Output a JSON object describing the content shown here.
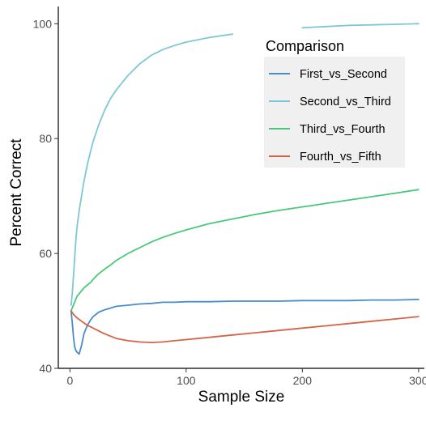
{
  "chart_data": {
    "type": "line",
    "title": "",
    "xlabel": "Sample Size",
    "ylabel": "Percent Correct",
    "xlim": [
      -10,
      305
    ],
    "ylim": [
      40,
      103
    ],
    "xticks": [
      0,
      100,
      200,
      300
    ],
    "yticks": [
      40,
      60,
      80,
      100
    ],
    "grid": false,
    "legend": {
      "title": "Comparison",
      "placement": "top-right",
      "background": "#f0f0f0"
    },
    "x": [
      1,
      2,
      3,
      4,
      5,
      6,
      8,
      10,
      12,
      15,
      18,
      20,
      25,
      30,
      35,
      40,
      50,
      60,
      70,
      80,
      90,
      100,
      120,
      140,
      160,
      180,
      200,
      220,
      240,
      260,
      280,
      300
    ],
    "series": [
      {
        "name": "First_vs_Second",
        "color": "#4a8cc8",
        "values": [
          50.0,
          48.0,
          45.5,
          43.8,
          43.2,
          42.8,
          42.5,
          44.0,
          46.0,
          47.5,
          48.5,
          49.0,
          49.8,
          50.2,
          50.5,
          50.8,
          51.0,
          51.2,
          51.3,
          51.5,
          51.5,
          51.6,
          51.6,
          51.7,
          51.7,
          51.7,
          51.8,
          51.8,
          51.8,
          51.9,
          51.9,
          52.0
        ]
      },
      {
        "name": "Second_vs_Third",
        "color": "#7ec8d3",
        "values": [
          51.0,
          53.0,
          56.0,
          59.0,
          62.0,
          64.5,
          67.5,
          70.0,
          72.5,
          75.5,
          78.0,
          79.5,
          82.5,
          85.0,
          87.0,
          88.5,
          91.0,
          93.0,
          94.5,
          95.5,
          96.2,
          96.8,
          97.6,
          98.2,
          null,
          null,
          99.3,
          99.5,
          99.7,
          99.8,
          99.9,
          100.0
        ]
      },
      {
        "name": "Third_vs_Fourth",
        "color": "#48c878",
        "values": [
          50.0,
          50.5,
          51.0,
          51.5,
          52.0,
          52.5,
          53.0,
          53.5,
          54.0,
          54.5,
          55.0,
          55.5,
          56.5,
          57.3,
          58.0,
          58.8,
          60.0,
          61.0,
          62.0,
          62.8,
          63.5,
          64.1,
          65.2,
          66.0,
          66.8,
          67.5,
          68.1,
          68.7,
          69.3,
          69.9,
          70.5,
          71.1
        ]
      },
      {
        "name": "Fourth_vs_Fifth",
        "color": "#d46448",
        "values": [
          50.0,
          49.7,
          49.4,
          49.2,
          49.0,
          48.8,
          48.5,
          48.2,
          47.9,
          47.5,
          47.2,
          47.0,
          46.5,
          46.0,
          45.6,
          45.2,
          44.8,
          44.6,
          44.5,
          44.6,
          44.8,
          45.0,
          45.4,
          45.8,
          46.2,
          46.6,
          47.0,
          47.4,
          47.8,
          48.2,
          48.6,
          49.0
        ]
      }
    ]
  }
}
